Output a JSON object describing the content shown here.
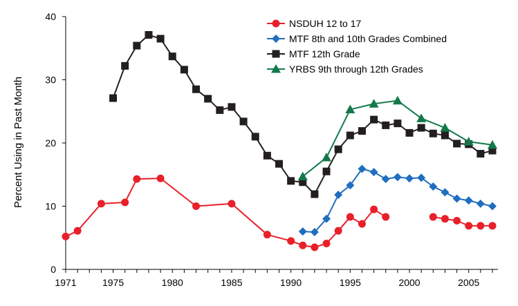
{
  "chart_data": {
    "type": "line",
    "title": "",
    "xlabel": "",
    "ylabel": "Percent Using in Past Month",
    "xlim": [
      1971,
      2007
    ],
    "ylim": [
      0,
      40
    ],
    "x_ticks": [
      {
        "value": 1971,
        "label": "1971"
      },
      {
        "value": 1975,
        "label": "1975"
      },
      {
        "value": 1980,
        "label": "1980"
      },
      {
        "value": 1985,
        "label": "1985"
      },
      {
        "value": 1990,
        "label": "1990"
      },
      {
        "value": 1995,
        "label": "1995"
      },
      {
        "value": 2000,
        "label": "2000"
      },
      {
        "value": 2005,
        "label": "2005"
      }
    ],
    "y_ticks": [
      {
        "value": 0,
        "label": "0"
      },
      {
        "value": 10,
        "label": "10"
      },
      {
        "value": 20,
        "label": "20"
      },
      {
        "value": 30,
        "label": "30"
      },
      {
        "value": 40,
        "label": "40"
      }
    ],
    "grid": false,
    "legend_position": "top-right",
    "series": [
      {
        "name": "NSDUH 12 to 17",
        "color": "#e8202a",
        "marker": "circle",
        "segments": [
          [
            [
              1971,
              5.2
            ],
            [
              1972,
              6.1
            ],
            [
              1974,
              10.4
            ],
            [
              1976,
              10.6
            ],
            [
              1977,
              14.3
            ],
            [
              1979,
              14.4
            ],
            [
              1982,
              10.0
            ],
            [
              1985,
              10.4
            ],
            [
              1988,
              5.5
            ],
            [
              1990,
              4.5
            ],
            [
              1991,
              3.8
            ],
            [
              1992,
              3.5
            ],
            [
              1993,
              4.1
            ],
            [
              1994,
              6.1
            ],
            [
              1995,
              8.3
            ],
            [
              1996,
              7.2
            ],
            [
              1997,
              9.5
            ],
            [
              1998,
              8.3
            ]
          ],
          [
            [
              2002,
              8.3
            ],
            [
              2003,
              8.0
            ],
            [
              2004,
              7.7
            ],
            [
              2005,
              6.9
            ],
            [
              2006,
              6.9
            ],
            [
              2007,
              6.9
            ]
          ]
        ]
      },
      {
        "name": "MTF 8th and 10th Grades Combined",
        "color": "#1f6ebf",
        "marker": "diamond",
        "segments": [
          [
            [
              1991,
              6.0
            ],
            [
              1992,
              5.9
            ],
            [
              1993,
              8.0
            ],
            [
              1994,
              11.8
            ],
            [
              1995,
              13.3
            ],
            [
              1996,
              15.9
            ],
            [
              1997,
              15.4
            ],
            [
              1998,
              14.3
            ],
            [
              1999,
              14.6
            ],
            [
              2000,
              14.4
            ],
            [
              2001,
              14.5
            ],
            [
              2002,
              13.1
            ],
            [
              2003,
              12.2
            ],
            [
              2004,
              11.2
            ],
            [
              2005,
              10.9
            ],
            [
              2006,
              10.4
            ],
            [
              2007,
              10.0
            ]
          ]
        ]
      },
      {
        "name": "MTF 12th Grade",
        "color": "#231f20",
        "marker": "square",
        "segments": [
          [
            [
              1975,
              27.1
            ],
            [
              1976,
              32.2
            ],
            [
              1977,
              35.4
            ],
            [
              1978,
              37.1
            ],
            [
              1979,
              36.5
            ],
            [
              1980,
              33.7
            ],
            [
              1981,
              31.6
            ],
            [
              1982,
              28.5
            ],
            [
              1983,
              27.0
            ],
            [
              1984,
              25.2
            ],
            [
              1985,
              25.7
            ],
            [
              1986,
              23.4
            ],
            [
              1987,
              21.0
            ],
            [
              1988,
              18.0
            ],
            [
              1989,
              16.7
            ],
            [
              1990,
              14.0
            ],
            [
              1991,
              13.8
            ],
            [
              1992,
              11.9
            ],
            [
              1993,
              15.5
            ],
            [
              1994,
              19.0
            ],
            [
              1995,
              21.2
            ],
            [
              1996,
              21.9
            ],
            [
              1997,
              23.7
            ],
            [
              1998,
              22.8
            ],
            [
              1999,
              23.1
            ],
            [
              2000,
              21.6
            ],
            [
              2001,
              22.4
            ],
            [
              2002,
              21.5
            ],
            [
              2003,
              21.2
            ],
            [
              2004,
              19.9
            ],
            [
              2005,
              19.8
            ],
            [
              2006,
              18.3
            ],
            [
              2007,
              18.8
            ]
          ]
        ]
      },
      {
        "name": "YRBS 9th through 12th Grades",
        "color": "#13794a",
        "marker": "triangle",
        "segments": [
          [
            [
              1991,
              14.7
            ],
            [
              1993,
              17.7
            ],
            [
              1995,
              25.3
            ],
            [
              1997,
              26.2
            ],
            [
              1999,
              26.7
            ],
            [
              2001,
              23.9
            ],
            [
              2003,
              22.4
            ],
            [
              2005,
              20.2
            ],
            [
              2007,
              19.7
            ]
          ]
        ]
      }
    ]
  }
}
